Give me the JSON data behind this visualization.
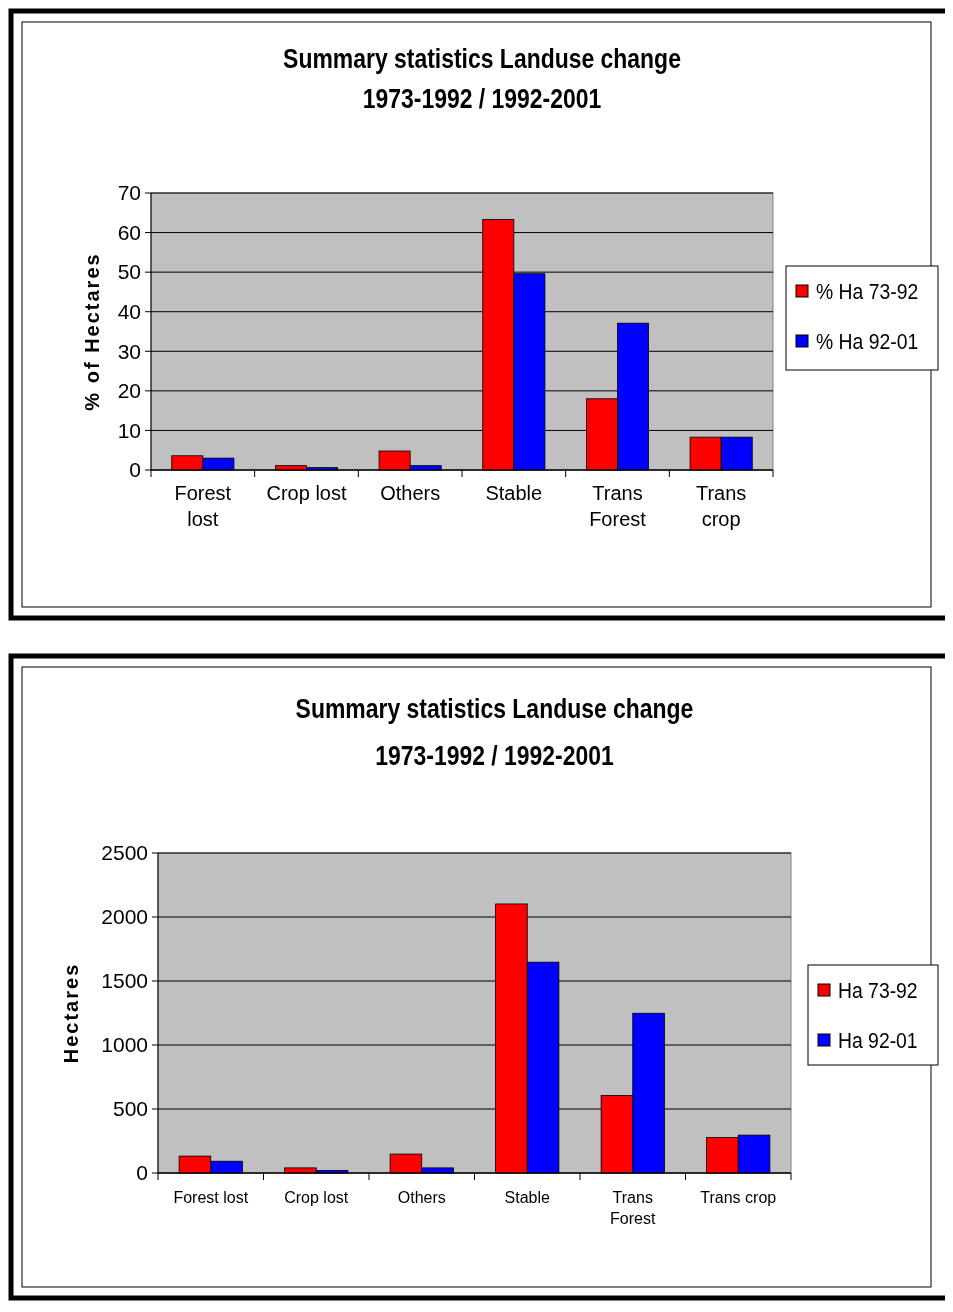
{
  "chart_data": [
    {
      "type": "bar",
      "title": "Summary statistics Landuse change",
      "subtitle": "1973-1992 / 1992-2001",
      "ylabel": "% of Hectares",
      "categories": [
        "Forest lost",
        "Crop lost",
        "Others",
        "Stable",
        "Trans Forest",
        "Trans crop"
      ],
      "series": [
        {
          "name": "% Ha 73-92",
          "color": "#ff0000",
          "values": [
            3.6,
            1.1,
            4.8,
            63.3,
            18.0,
            8.3
          ]
        },
        {
          "name": "% Ha 92-01",
          "color": "#0000ff",
          "values": [
            3.0,
            0.6,
            1.1,
            49.6,
            37.1,
            8.3
          ]
        }
      ],
      "ylim": [
        0,
        70
      ],
      "yticks": [
        0,
        10,
        20,
        30,
        40,
        50,
        60,
        70
      ],
      "grid": "y",
      "legend": "right"
    },
    {
      "type": "bar",
      "title": "Summary statistics Landuse change",
      "subtitle": "1973-1992 / 1992-2001",
      "ylabel": "Hectares",
      "categories": [
        "Forest lost",
        "Crop lost",
        "Others",
        "Stable",
        "Trans Forest",
        "Trans crop"
      ],
      "series": [
        {
          "name": "Ha 73-92",
          "color": "#ff0000",
          "values": [
            132,
            40,
            148,
            2102,
            606,
            277
          ]
        },
        {
          "name": "Ha 92-01",
          "color": "#0000ff",
          "values": [
            92,
            20,
            40,
            1647,
            1248,
            296
          ]
        }
      ],
      "ylim": [
        0,
        2500
      ],
      "yticks": [
        0,
        500,
        1000,
        1500,
        2000,
        2500
      ],
      "grid": "y",
      "legend": "right"
    }
  ]
}
